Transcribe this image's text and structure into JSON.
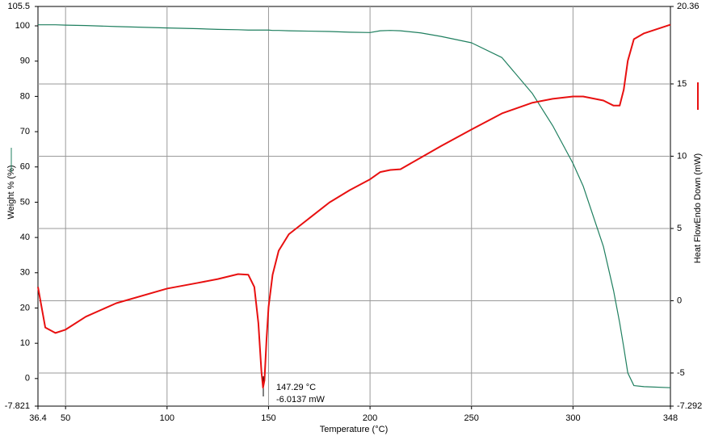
{
  "chart_data": {
    "type": "line",
    "x_label": "Temperature (°C)",
    "y_label": "Weight % (%)",
    "y2_label": "Heat FlowEndo Down (mW)",
    "x": [
      36.4,
      40,
      45,
      50,
      60,
      75,
      100,
      115,
      125,
      135,
      140,
      143,
      145,
      146.5,
      147.29,
      148,
      149,
      150,
      152,
      155,
      160,
      170,
      180,
      190,
      200,
      205,
      210,
      215,
      225,
      235,
      250,
      265,
      280,
      290,
      300,
      305,
      315,
      320,
      323,
      325,
      327,
      330,
      335,
      348
    ],
    "series": [
      {
        "color": "#1f7f5f",
        "axis": "y",
        "values": [
          100.3,
          100.3,
          100.3,
          100.2,
          100.1,
          99.8,
          99.4,
          99.2,
          99.0,
          98.9,
          98.8,
          98.8,
          98.8,
          98.8,
          98.8,
          98.8,
          98.8,
          98.8,
          98.7,
          98.7,
          98.6,
          98.5,
          98.4,
          98.2,
          98.1,
          98.6,
          98.7,
          98.6,
          98.0,
          97.0,
          95.2,
          91,
          80.8,
          71.7,
          61,
          54.6,
          37.4,
          24.9,
          15.8,
          8.9,
          1.6,
          -2,
          -2.3,
          -2.6
        ]
      },
      {
        "color": "#e81010",
        "axis": "y2",
        "values": [
          0.95,
          -1.85,
          -2.23,
          -2.0,
          -1.1,
          -0.17,
          0.84,
          1.23,
          1.5,
          1.84,
          1.8,
          0.95,
          -1.56,
          -4.9,
          -6.0137,
          -5.5,
          -2.7,
          -0.45,
          1.8,
          3.46,
          4.6,
          5.7,
          6.8,
          7.65,
          8.4,
          8.9,
          9.05,
          9.1,
          9.9,
          10.7,
          11.85,
          12.96,
          13.7,
          13.97,
          14.13,
          14.13,
          13.85,
          13.5,
          13.5,
          14.6,
          16.6,
          18.1,
          18.5,
          19.1
        ]
      }
    ],
    "xlim": [
      36.4,
      348
    ],
    "xticks": [
      36.4,
      50,
      100,
      150,
      200,
      250,
      300,
      348
    ],
    "ylim": [
      -7.821,
      105.5
    ],
    "yticks": [
      -7.821,
      0,
      10,
      20,
      30,
      40,
      50,
      60,
      70,
      80,
      90,
      100,
      105.5
    ],
    "y2lim": [
      -7.292,
      20.36
    ],
    "y2ticks": [
      -7.292,
      -5,
      0,
      5,
      10,
      15,
      20.36
    ],
    "grid": true,
    "annotations": [
      "147.29 °C",
      "-6.0137 mW"
    ]
  }
}
